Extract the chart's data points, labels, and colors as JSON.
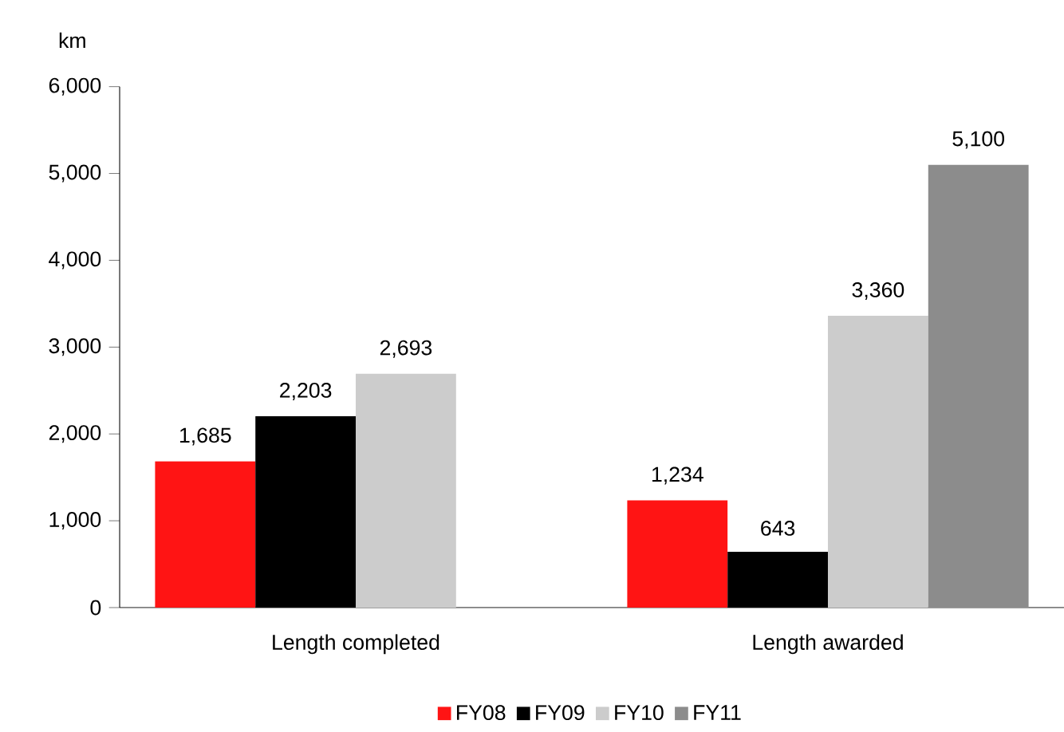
{
  "chart_data": {
    "type": "bar",
    "ylabel": "km",
    "categories": [
      "Length completed",
      "Length awarded"
    ],
    "series": [
      {
        "name": "FY08",
        "color": "#ff1414",
        "values": [
          1685,
          1234
        ],
        "value_labels": [
          "1,685",
          "1,234"
        ]
      },
      {
        "name": "FY09",
        "color": "#000000",
        "values": [
          2203,
          643
        ],
        "value_labels": [
          "2,203",
          "643"
        ]
      },
      {
        "name": "FY10",
        "color": "#cccccc",
        "values": [
          2693,
          3360
        ],
        "value_labels": [
          "2,693",
          "3,360"
        ]
      },
      {
        "name": "FY11",
        "color": "#8c8c8c",
        "values": [
          null,
          5100
        ],
        "value_labels": [
          null,
          "5,100"
        ]
      }
    ],
    "ylim": [
      0,
      6000
    ],
    "yticks": [
      {
        "value": 0,
        "label": "0"
      },
      {
        "value": 1000,
        "label": "1,000"
      },
      {
        "value": 2000,
        "label": "2,000"
      },
      {
        "value": 3000,
        "label": "3,000"
      },
      {
        "value": 4000,
        "label": "4,000"
      },
      {
        "value": 5000,
        "label": "5,000"
      },
      {
        "value": 6000,
        "label": "6,000"
      }
    ],
    "grid": false,
    "legend": "bottom"
  }
}
